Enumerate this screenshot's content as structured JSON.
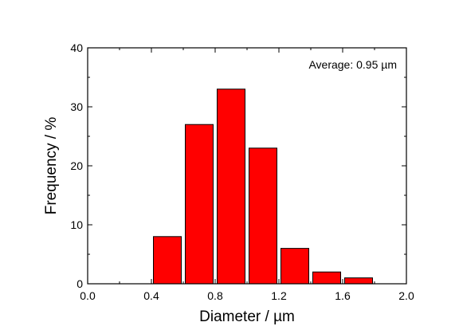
{
  "chart_data": {
    "type": "bar",
    "bin_width": 0.2,
    "x": [
      0.5,
      0.7,
      0.9,
      1.1,
      1.3,
      1.5,
      1.7
    ],
    "values": [
      8,
      27,
      33,
      23,
      6,
      2,
      1
    ],
    "xlabel": "Diameter / µm",
    "ylabel": "Frequency / %",
    "xlim": [
      0.0,
      2.0
    ],
    "ylim": [
      0,
      40
    ],
    "xticks": [
      0.0,
      0.4,
      0.8,
      1.2,
      1.6,
      2.0
    ],
    "xtick_labels": [
      "0.0",
      "0.4",
      "0.8",
      "1.2",
      "1.6",
      "2.0"
    ],
    "yticks": [
      0,
      10,
      20,
      30,
      40
    ],
    "ytick_labels": [
      "0",
      "10",
      "20",
      "30",
      "40"
    ],
    "annotation": "Average: 0.95 µm",
    "grid": false,
    "bar_color": "#ff0000",
    "bar_edge_color": "#000000"
  }
}
